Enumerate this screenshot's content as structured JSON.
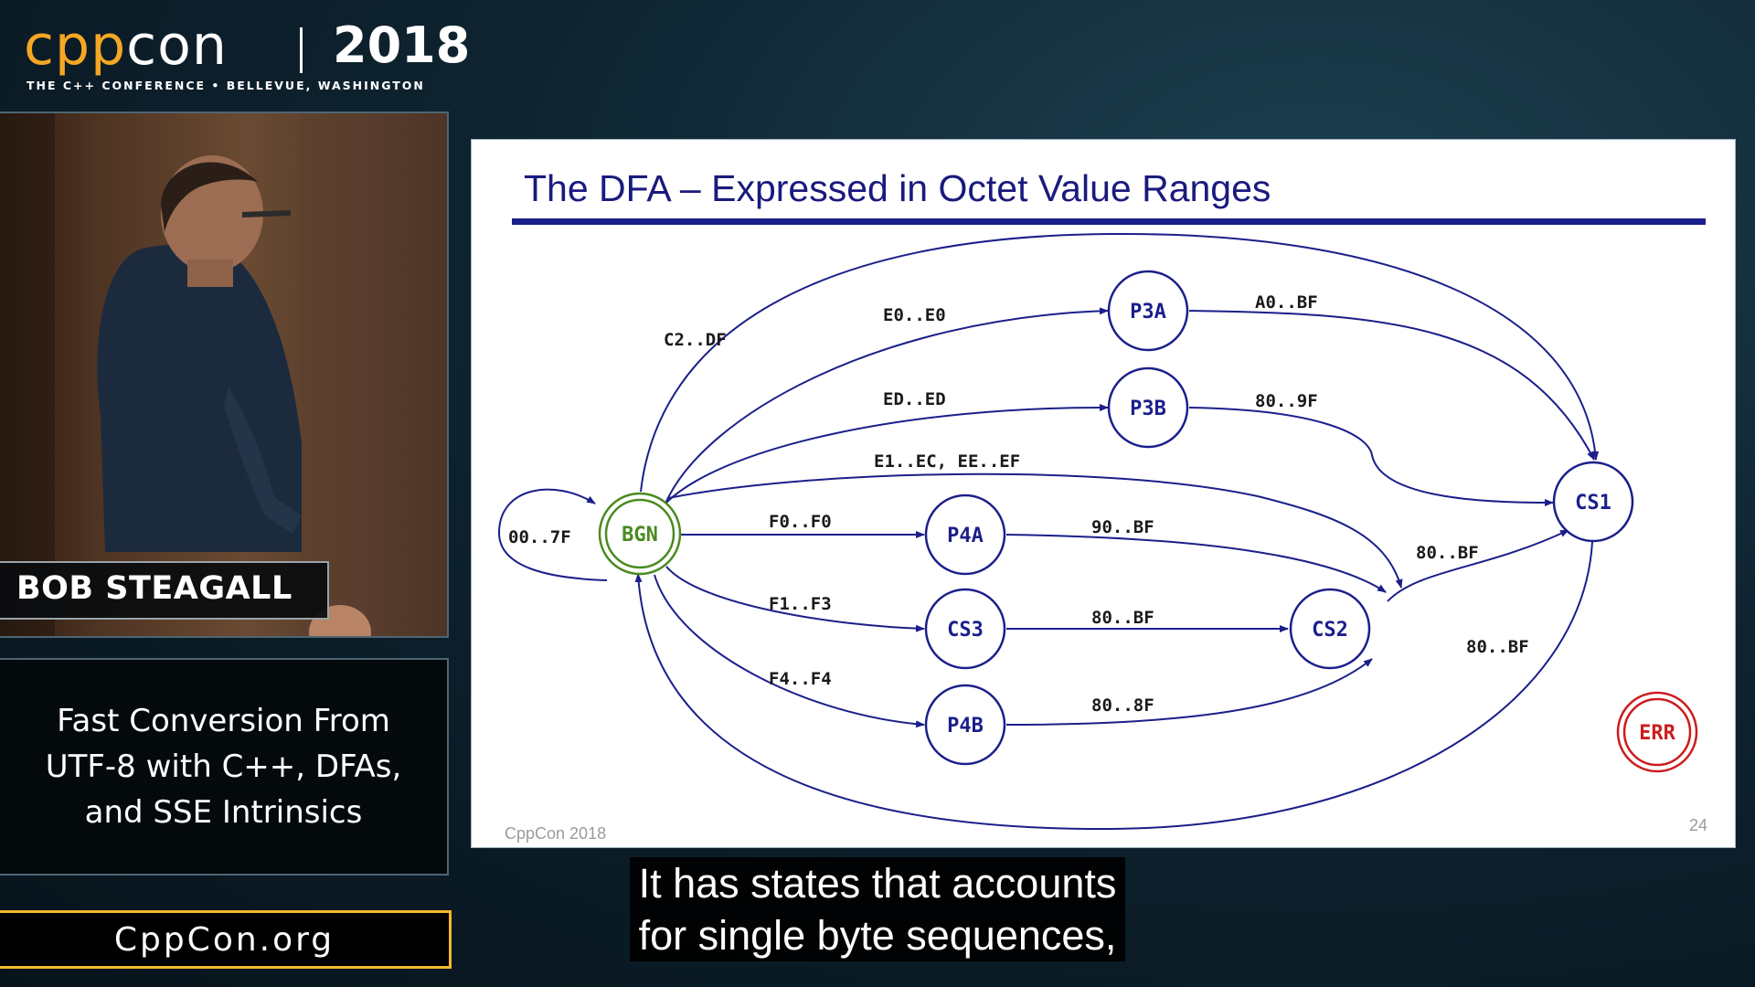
{
  "branding": {
    "logo_prefix": "cpp",
    "logo_suffix": "con",
    "logo_year": "2018",
    "tagline": "THE C++ CONFERENCE • BELLEVUE, WASHINGTON",
    "accent_color": "#f5a623"
  },
  "speaker": {
    "name": "BOB STEAGALL"
  },
  "talk": {
    "title_lines": [
      "Fast Conversion From",
      "UTF-8 with C++, DFAs,",
      "and SSE Intrinsics"
    ]
  },
  "site": {
    "url": "CppCon.org"
  },
  "slide": {
    "title": "The DFA – Expressed in Octet Value Ranges",
    "footer": "CppCon 2018",
    "page_number": "24",
    "states": [
      {
        "id": "BGN",
        "label": "BGN",
        "color": "#4a8a1f"
      },
      {
        "id": "P3A",
        "label": "P3A",
        "color": "#1b1f8a"
      },
      {
        "id": "P3B",
        "label": "P3B",
        "color": "#1b1f8a"
      },
      {
        "id": "P4A",
        "label": "P4A",
        "color": "#1b1f8a"
      },
      {
        "id": "CS3",
        "label": "CS3",
        "color": "#1b1f8a"
      },
      {
        "id": "P4B",
        "label": "P4B",
        "color": "#1b1f8a"
      },
      {
        "id": "CS2",
        "label": "CS2",
        "color": "#1b1f8a"
      },
      {
        "id": "CS1",
        "label": "CS1",
        "color": "#1b1f8a"
      },
      {
        "id": "ERR",
        "label": "ERR",
        "color": "#cc1d1d"
      }
    ],
    "transitions": [
      {
        "from": "BGN",
        "to": "BGN",
        "label": "00..7F"
      },
      {
        "from": "BGN",
        "to": "CS1",
        "label": "C2..DF"
      },
      {
        "from": "BGN",
        "to": "P3A",
        "label": "E0..E0"
      },
      {
        "from": "BGN",
        "to": "P3B",
        "label": "ED..ED"
      },
      {
        "from": "BGN",
        "to": "CS2",
        "label": "E1..EC, EE..EF"
      },
      {
        "from": "BGN",
        "to": "P4A",
        "label": "F0..F0"
      },
      {
        "from": "BGN",
        "to": "CS3",
        "label": "F1..F3"
      },
      {
        "from": "BGN",
        "to": "P4B",
        "label": "F4..F4"
      },
      {
        "from": "P3A",
        "to": "CS1",
        "label": "A0..BF"
      },
      {
        "from": "P3B",
        "to": "CS1",
        "label": "80..9F"
      },
      {
        "from": "P4A",
        "to": "CS2",
        "label": "90..BF"
      },
      {
        "from": "CS3",
        "to": "CS2",
        "label": "80..BF"
      },
      {
        "from": "P4B",
        "to": "CS2",
        "label": "80..8F"
      },
      {
        "from": "CS2",
        "to": "CS1",
        "label": "80..BF"
      },
      {
        "from": "CS1",
        "to": "BGN",
        "label": "80..BF"
      }
    ]
  },
  "captions": {
    "lines": [
      "It has states that accounts",
      "for single byte sequences,"
    ]
  }
}
